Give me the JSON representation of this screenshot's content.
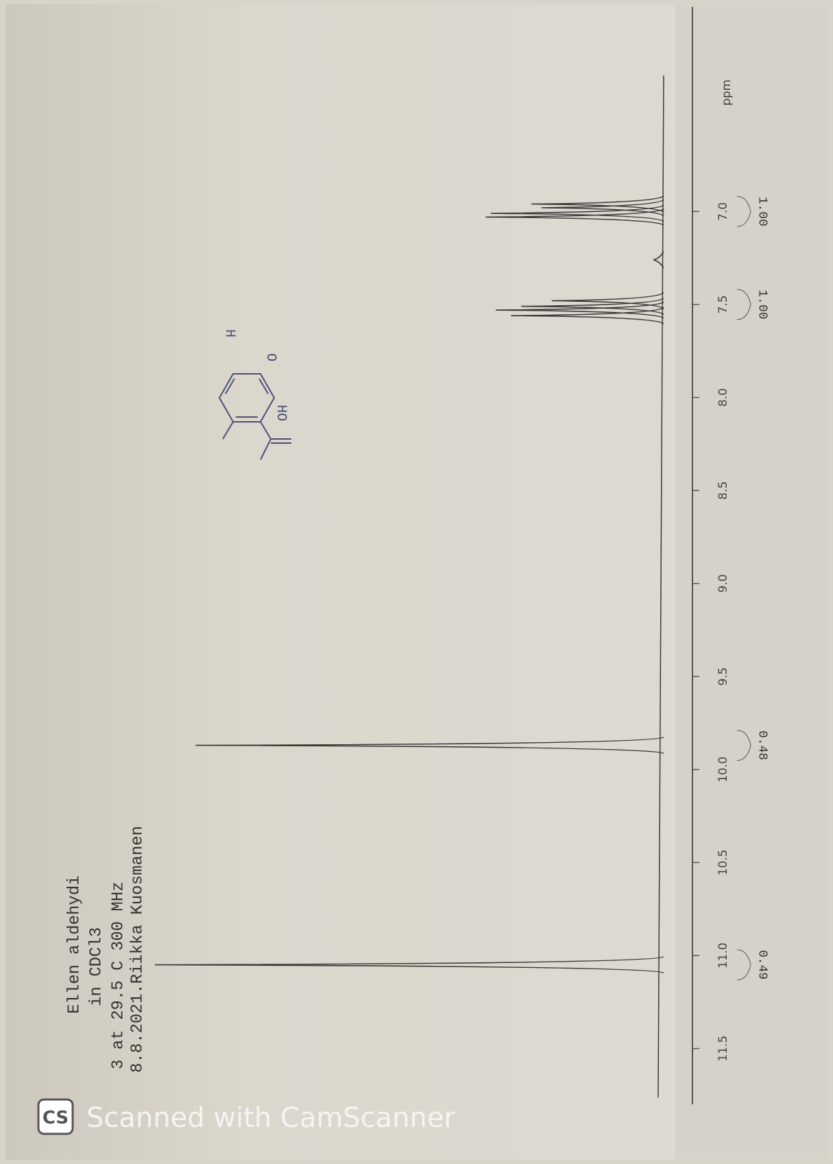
{
  "chart_data": {
    "type": "spectrum",
    "header": [
      "Ellen aldehydi",
      "in CDCl3",
      "3 at 29.5 C 300 MHz",
      "8.8.2021.Riikka Kuosmanen"
    ],
    "x_label": "ppm",
    "xlim": [
      5.9,
      11.8
    ],
    "xticks": [
      {
        "value": 7,
        "label": "7.0"
      },
      7.5,
      {
        "value": 8,
        "label": "8.0"
      },
      8.5,
      {
        "value": 9,
        "label": "9.0"
      },
      9.5,
      {
        "value": 10,
        "label": "10.0"
      },
      10.5,
      {
        "value": 11,
        "label": "11.0"
      },
      11.5
    ],
    "x": [
      11.05,
      9.87,
      7.56,
      7.53,
      7.51,
      7.48,
      7.26,
      7.03,
      7.01,
      6.98,
      6.96
    ],
    "values": [
      100,
      92,
      30,
      33,
      28,
      22,
      2,
      35,
      34,
      24,
      26
    ],
    "color": "#3a3a3a",
    "integrals": {
      "x": [
        11.05,
        9.87,
        7.5,
        7.0
      ],
      "values": [
        0.49,
        0.48,
        1.0,
        1.0
      ],
      "value_labels": [
        "0.49",
        "0.48",
        "1.00",
        "1.00"
      ]
    },
    "watermark": "Scanned with CamScanner"
  }
}
